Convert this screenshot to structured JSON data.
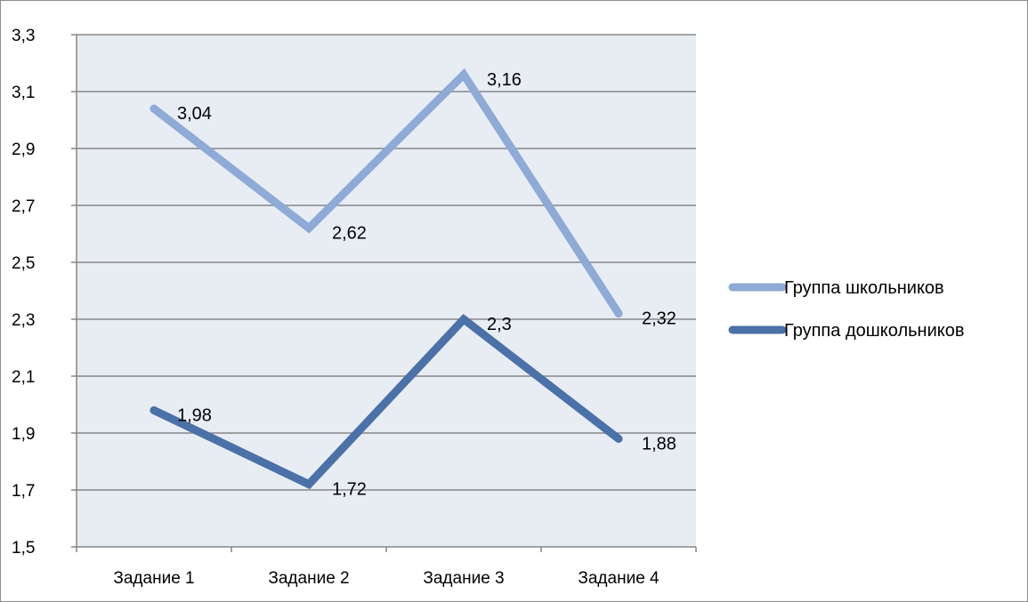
{
  "chart_data": {
    "type": "line",
    "title": "",
    "xlabel": "",
    "ylabel": "",
    "categories": [
      "Задание 1",
      "Задание 2",
      "Задание 3",
      "Задание 4"
    ],
    "ylim": [
      1.5,
      3.3
    ],
    "yticks": [
      1.5,
      1.7,
      1.9,
      2.1,
      2.3,
      2.5,
      2.7,
      2.9,
      3.1,
      3.3
    ],
    "ytick_labels": [
      "1,5",
      "1,7",
      "1,9",
      "2,1",
      "2,3",
      "2,5",
      "2,7",
      "2,9",
      "3,1",
      "3,3"
    ],
    "grid": true,
    "legend_position": "right",
    "series": [
      {
        "name": "Группа школьников",
        "color": "#8eaad6",
        "values": [
          3.04,
          2.62,
          3.16,
          2.32
        ],
        "labels": [
          "3,04",
          "2,62",
          "3,16",
          "2,32"
        ]
      },
      {
        "name": "Группа дошкольников",
        "color": "#4a71a8",
        "values": [
          1.98,
          1.72,
          2.3,
          1.88
        ],
        "labels": [
          "1,98",
          "1,72",
          "2,3",
          "1,88"
        ]
      }
    ]
  }
}
